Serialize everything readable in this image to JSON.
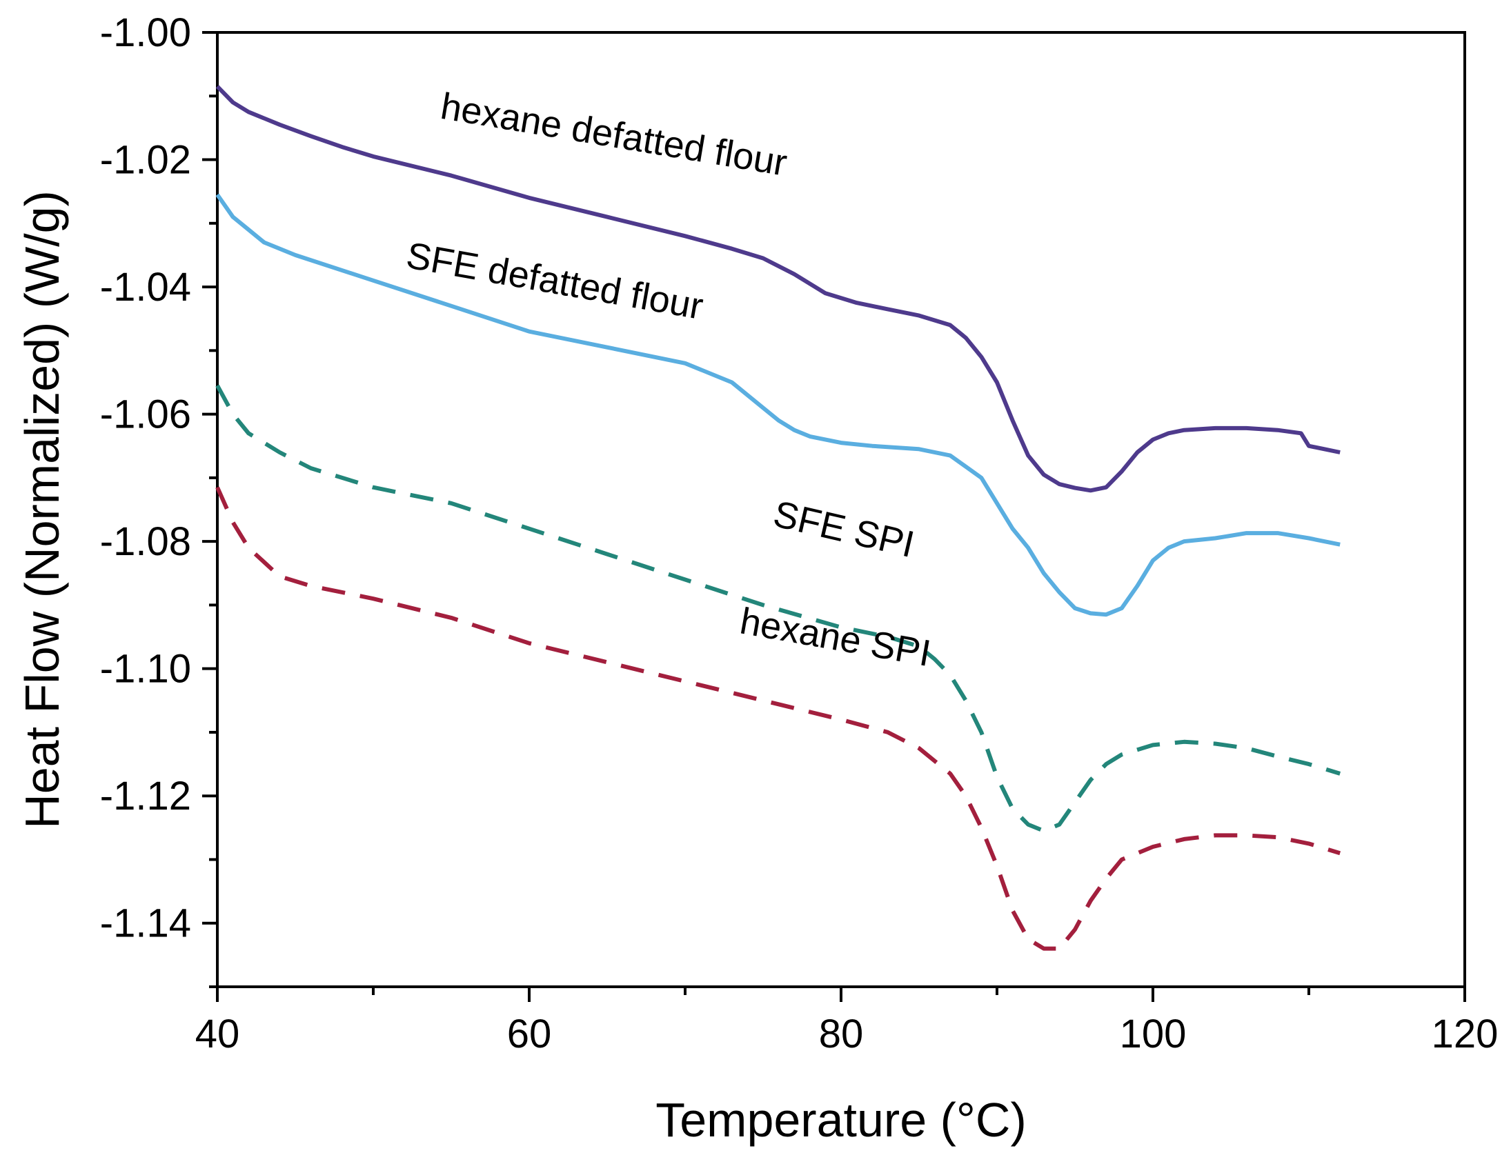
{
  "chart_data": {
    "type": "line",
    "title": "",
    "xlabel": "Temperature (°C)",
    "ylabel": "Heat Flow (Normalized) (W/g)",
    "xlim": [
      40,
      120
    ],
    "ylim": [
      -1.15,
      -1.0
    ],
    "xticks": [
      40,
      60,
      80,
      100,
      120
    ],
    "xtick_labels": [
      "40",
      "60",
      "80",
      "100",
      "120"
    ],
    "yticks": [
      -1.0,
      -1.02,
      -1.04,
      -1.06,
      -1.08,
      -1.1,
      -1.12,
      -1.14
    ],
    "ytick_labels": [
      "-1.00",
      "-1.02",
      "-1.04",
      "-1.06",
      "-1.08",
      "-1.10",
      "-1.12",
      "-1.14"
    ],
    "grid": false,
    "legend": "none",
    "series": [
      {
        "name": "hexane defatted flour",
        "label": "hexane defatted flour",
        "color": "#4e3a8c",
        "dash": "solid",
        "label_pos": {
          "x": 65.3,
          "y": -1.018,
          "angle": 9.5
        },
        "points": [
          [
            40,
            -1.0085
          ],
          [
            41,
            -1.011
          ],
          [
            42,
            -1.0125
          ],
          [
            44,
            -1.0145
          ],
          [
            46,
            -1.0163
          ],
          [
            48,
            -1.018
          ],
          [
            50,
            -1.0195
          ],
          [
            55,
            -1.0225
          ],
          [
            60,
            -1.026
          ],
          [
            65,
            -1.029
          ],
          [
            70,
            -1.032
          ],
          [
            73,
            -1.034
          ],
          [
            75,
            -1.0355
          ],
          [
            77,
            -1.038
          ],
          [
            79,
            -1.041
          ],
          [
            81,
            -1.0425
          ],
          [
            83,
            -1.0435
          ],
          [
            85,
            -1.0445
          ],
          [
            87,
            -1.046
          ],
          [
            88,
            -1.048
          ],
          [
            89,
            -1.051
          ],
          [
            90,
            -1.055
          ],
          [
            91,
            -1.061
          ],
          [
            92,
            -1.0665
          ],
          [
            93,
            -1.0695
          ],
          [
            94,
            -1.071
          ],
          [
            95,
            -1.0716
          ],
          [
            96,
            -1.072
          ],
          [
            97,
            -1.0715
          ],
          [
            98,
            -1.069
          ],
          [
            99,
            -1.066
          ],
          [
            100,
            -1.064
          ],
          [
            101,
            -1.063
          ],
          [
            102,
            -1.0625
          ],
          [
            104,
            -1.0622
          ],
          [
            106,
            -1.0622
          ],
          [
            108,
            -1.0625
          ],
          [
            109.5,
            -1.063
          ],
          [
            110,
            -1.065
          ],
          [
            111,
            -1.0655
          ],
          [
            112,
            -1.066
          ]
        ]
      },
      {
        "name": "SFE defatted flour",
        "label": "SFE defatted flour",
        "color": "#5aaee0",
        "dash": "solid",
        "label_pos": {
          "x": 61.5,
          "y": -1.041,
          "angle": 10
        },
        "points": [
          [
            40,
            -1.0255
          ],
          [
            41,
            -1.029
          ],
          [
            42,
            -1.031
          ],
          [
            43,
            -1.033
          ],
          [
            45,
            -1.035
          ],
          [
            50,
            -1.039
          ],
          [
            55,
            -1.043
          ],
          [
            60,
            -1.047
          ],
          [
            65,
            -1.0495
          ],
          [
            70,
            -1.052
          ],
          [
            73,
            -1.055
          ],
          [
            75,
            -1.059
          ],
          [
            76,
            -1.061
          ],
          [
            77,
            -1.0625
          ],
          [
            78,
            -1.0635
          ],
          [
            80,
            -1.0645
          ],
          [
            82,
            -1.065
          ],
          [
            85,
            -1.0655
          ],
          [
            87,
            -1.0665
          ],
          [
            89,
            -1.07
          ],
          [
            91,
            -1.078
          ],
          [
            92,
            -1.081
          ],
          [
            93,
            -1.085
          ],
          [
            94,
            -1.088
          ],
          [
            95,
            -1.0905
          ],
          [
            96,
            -1.0913
          ],
          [
            97,
            -1.0915
          ],
          [
            98,
            -1.0905
          ],
          [
            99,
            -1.087
          ],
          [
            100,
            -1.083
          ],
          [
            101,
            -1.081
          ],
          [
            102,
            -1.08
          ],
          [
            104,
            -1.0795
          ],
          [
            106,
            -1.0787
          ],
          [
            108,
            -1.0787
          ],
          [
            110,
            -1.0795
          ],
          [
            112,
            -1.0805
          ]
        ]
      },
      {
        "name": "SFE SPI",
        "label": "SFE SPI",
        "color": "#23867a",
        "dash": "dashed",
        "label_pos": {
          "x": 80,
          "y": -1.08,
          "angle": 13
        },
        "points": [
          [
            40,
            -1.0555
          ],
          [
            41,
            -1.06
          ],
          [
            42,
            -1.063
          ],
          [
            44,
            -1.066
          ],
          [
            46,
            -1.0685
          ],
          [
            50,
            -1.0715
          ],
          [
            55,
            -1.074
          ],
          [
            60,
            -1.078
          ],
          [
            65,
            -1.082
          ],
          [
            70,
            -1.086
          ],
          [
            75,
            -1.09
          ],
          [
            80,
            -1.0935
          ],
          [
            83,
            -1.095
          ],
          [
            85,
            -1.0965
          ],
          [
            86,
            -1.0985
          ],
          [
            87,
            -1.101
          ],
          [
            88,
            -1.105
          ],
          [
            89,
            -1.11
          ],
          [
            90,
            -1.117
          ],
          [
            91,
            -1.122
          ],
          [
            92,
            -1.1245
          ],
          [
            93,
            -1.1255
          ],
          [
            94,
            -1.1245
          ],
          [
            95,
            -1.121
          ],
          [
            96,
            -1.1175
          ],
          [
            97,
            -1.115
          ],
          [
            98,
            -1.1135
          ],
          [
            100,
            -1.112
          ],
          [
            102,
            -1.1115
          ],
          [
            104,
            -1.1118
          ],
          [
            106,
            -1.1125
          ],
          [
            108,
            -1.1138
          ],
          [
            110,
            -1.115
          ],
          [
            112,
            -1.1165
          ]
        ]
      },
      {
        "name": "hexane SPI",
        "label": "hexane SPI",
        "color": "#a31f3d",
        "dash": "dashed",
        "label_pos": {
          "x": 79.5,
          "y": -1.097,
          "angle": 10
        },
        "points": [
          [
            40,
            -1.0715
          ],
          [
            41,
            -1.077
          ],
          [
            42,
            -1.081
          ],
          [
            44,
            -1.0855
          ],
          [
            46,
            -1.087
          ],
          [
            50,
            -1.089
          ],
          [
            55,
            -1.092
          ],
          [
            60,
            -1.096
          ],
          [
            65,
            -1.099
          ],
          [
            70,
            -1.102
          ],
          [
            75,
            -1.105
          ],
          [
            80,
            -1.108
          ],
          [
            83,
            -1.11
          ],
          [
            85,
            -1.1125
          ],
          [
            87,
            -1.1165
          ],
          [
            88,
            -1.12
          ],
          [
            89,
            -1.125
          ],
          [
            90,
            -1.131
          ],
          [
            91,
            -1.138
          ],
          [
            92,
            -1.1425
          ],
          [
            93,
            -1.144
          ],
          [
            94,
            -1.144
          ],
          [
            95,
            -1.141
          ],
          [
            96,
            -1.1365
          ],
          [
            97,
            -1.133
          ],
          [
            98,
            -1.13
          ],
          [
            100,
            -1.128
          ],
          [
            102,
            -1.1268
          ],
          [
            104,
            -1.1262
          ],
          [
            106,
            -1.1262
          ],
          [
            108,
            -1.1265
          ],
          [
            110,
            -1.1275
          ],
          [
            112,
            -1.129
          ]
        ]
      }
    ]
  }
}
